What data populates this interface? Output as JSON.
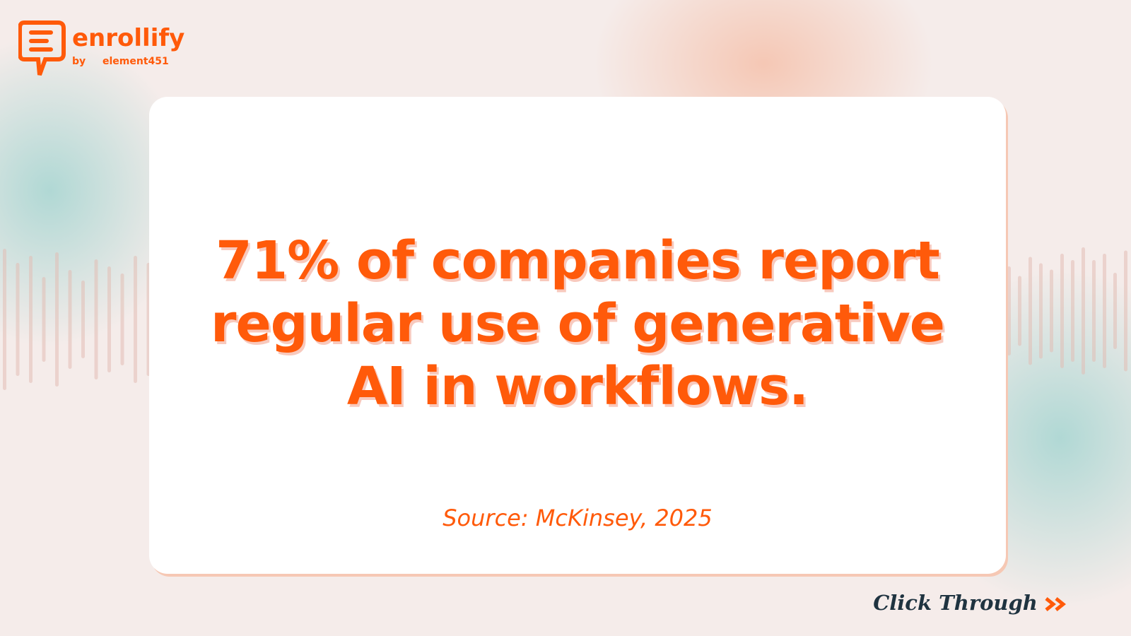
{
  "logo": {
    "name": "enrollify",
    "by": "by",
    "partner": "element451"
  },
  "headline": {
    "lines": [
      "71% of companies report",
      "regular use of generative",
      "AI in workflows."
    ]
  },
  "source": "Source: McKinsey, 2025",
  "footer": {
    "cta": "Click Through"
  }
}
